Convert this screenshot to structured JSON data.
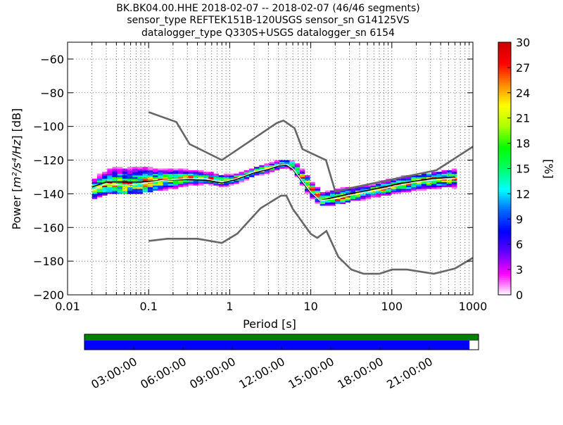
{
  "title_lines": [
    "BK.BK04.00.HHE   2018-02-07 -- 2018-02-07  (46/46 segments)",
    "sensor_type REFTEK151B-120USGS sensor_sn G14125VS",
    "datalogger_type Q330S+USGS datalogger_sn 6154"
  ],
  "chart_data": {
    "type": "heatmap",
    "xlabel": "Period [s]",
    "ylabel_prefix": "Power [",
    "ylabel_units": "m²/s⁴/Hz",
    "ylabel_suffix": "] [dB]",
    "x_scale": "log",
    "xlim": [
      0.01,
      1000
    ],
    "ylim": [
      -200,
      -50
    ],
    "x_ticks": [
      {
        "value": 0.01,
        "label": "0.01"
      },
      {
        "value": 0.1,
        "label": "0.1"
      },
      {
        "value": 1,
        "label": "1"
      },
      {
        "value": 10,
        "label": "10"
      },
      {
        "value": 100,
        "label": "100"
      },
      {
        "value": 1000,
        "label": "1000"
      }
    ],
    "y_ticks": [
      -60,
      -80,
      -100,
      -120,
      -140,
      -160,
      -180,
      -200
    ],
    "grid": true,
    "colorbar": {
      "label": "[%]",
      "range": [
        0,
        30
      ],
      "ticks": [
        0,
        3,
        6,
        9,
        12,
        15,
        18,
        21,
        24,
        27,
        30
      ],
      "colors": [
        "#ffffff",
        "#ff00ff",
        "#6600ff",
        "#0000ff",
        "#0066ff",
        "#00ffff",
        "#00ff66",
        "#00ff00",
        "#aaff00",
        "#ffff00",
        "#ff8800",
        "#ff0000",
        "#cc0000"
      ]
    },
    "noise_models": [
      {
        "name": "NHNM",
        "color": "#666666",
        "points": [
          [
            0.1,
            -91.5
          ],
          [
            0.22,
            -97.4
          ],
          [
            0.32,
            -110.5
          ],
          [
            0.8,
            -120
          ],
          [
            3.8,
            -98
          ],
          [
            4.6,
            -96.5
          ],
          [
            6.3,
            -101
          ],
          [
            7.9,
            -113.5
          ],
          [
            15.4,
            -120
          ],
          [
            20,
            -138.5
          ],
          [
            354.8,
            -126
          ],
          [
            1000,
            -112
          ]
        ]
      },
      {
        "name": "NLNM",
        "color": "#666666",
        "points": [
          [
            0.1,
            -168
          ],
          [
            0.17,
            -166.7
          ],
          [
            0.4,
            -166.7
          ],
          [
            0.8,
            -169.2
          ],
          [
            1.24,
            -163.7
          ],
          [
            2.4,
            -148.6
          ],
          [
            4.3,
            -141.1
          ],
          [
            5,
            -141.1
          ],
          [
            6,
            -149
          ],
          [
            10,
            -163.8
          ],
          [
            12,
            -166.2
          ],
          [
            15.6,
            -162.1
          ],
          [
            21.9,
            -177.5
          ],
          [
            31.6,
            -185
          ],
          [
            45,
            -187.5
          ],
          [
            70,
            -187.5
          ],
          [
            101,
            -185
          ],
          [
            154,
            -185
          ],
          [
            328,
            -187.5
          ],
          [
            600,
            -184.4
          ],
          [
            1000,
            -178
          ]
        ]
      }
    ],
    "mode_line": [
      [
        0.02,
        -138
      ],
      [
        0.03,
        -134
      ],
      [
        0.05,
        -135
      ],
      [
        0.08,
        -134
      ],
      [
        0.15,
        -132
      ],
      [
        0.3,
        -131
      ],
      [
        0.5,
        -131
      ],
      [
        0.8,
        -133
      ],
      [
        1.2,
        -131
      ],
      [
        2.0,
        -127
      ],
      [
        3.0,
        -125
      ],
      [
        4.0,
        -123
      ],
      [
        5.0,
        -122.5
      ],
      [
        6.0,
        -125
      ],
      [
        8.0,
        -133
      ],
      [
        10,
        -139
      ],
      [
        13,
        -144
      ],
      [
        20,
        -143
      ],
      [
        30,
        -141
      ],
      [
        50,
        -139
      ],
      [
        80,
        -137
      ],
      [
        120,
        -135
      ],
      [
        200,
        -133
      ],
      [
        300,
        -132
      ],
      [
        600,
        -131
      ]
    ],
    "mean_line": [
      [
        0.02,
        -136
      ],
      [
        0.03,
        -133
      ],
      [
        0.05,
        -133
      ],
      [
        0.08,
        -133
      ],
      [
        0.15,
        -132
      ],
      [
        0.3,
        -131.5
      ],
      [
        0.5,
        -132
      ],
      [
        0.8,
        -133.5
      ],
      [
        1.2,
        -131.5
      ],
      [
        2.0,
        -127.5
      ],
      [
        3.0,
        -125.5
      ],
      [
        4.0,
        -123.5
      ],
      [
        5.0,
        -123
      ],
      [
        6.0,
        -125.5
      ],
      [
        8.0,
        -133.5
      ],
      [
        10,
        -139.5
      ],
      [
        13,
        -144
      ],
      [
        20,
        -142
      ],
      [
        30,
        -140
      ],
      [
        50,
        -138
      ],
      [
        80,
        -136
      ],
      [
        120,
        -134
      ],
      [
        200,
        -132.5
      ],
      [
        300,
        -131
      ],
      [
        600,
        -130
      ]
    ],
    "envelope": [
      [
        0.02,
        -143,
        -131
      ],
      [
        0.03,
        -140,
        -125
      ],
      [
        0.05,
        -140,
        -124
      ],
      [
        0.08,
        -139,
        -124
      ],
      [
        0.15,
        -137,
        -125
      ],
      [
        0.3,
        -135,
        -126
      ],
      [
        0.5,
        -135,
        -127
      ],
      [
        0.8,
        -136,
        -129
      ],
      [
        1.2,
        -134,
        -128
      ],
      [
        2.0,
        -130,
        -124
      ],
      [
        3.0,
        -128,
        -122
      ],
      [
        4.0,
        -126,
        -121
      ],
      [
        5.0,
        -125,
        -120.5
      ],
      [
        6.0,
        -129,
        -122
      ],
      [
        8.0,
        -138,
        -127
      ],
      [
        10,
        -144,
        -134
      ],
      [
        13,
        -147,
        -139
      ],
      [
        20,
        -146,
        -137
      ],
      [
        30,
        -144,
        -136
      ],
      [
        50,
        -143,
        -135
      ],
      [
        80,
        -142,
        -133
      ],
      [
        120,
        -140,
        -131
      ],
      [
        200,
        -139,
        -130
      ],
      [
        300,
        -138,
        -129
      ],
      [
        600,
        -137,
        -126
      ]
    ]
  },
  "timeline": {
    "tick_labels": [
      "03:00:00",
      "06:00:00",
      "09:00:00",
      "12:00:00",
      "15:00:00",
      "18:00:00",
      "21:00:00"
    ],
    "top_color": "#008000",
    "bottom_color": "#0000ff",
    "coverage_fraction": 0.977
  }
}
